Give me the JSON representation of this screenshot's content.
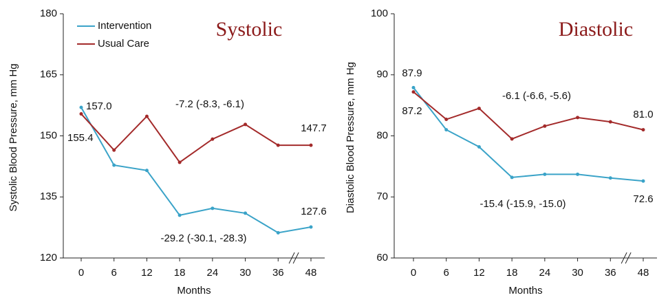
{
  "chart_data": [
    {
      "type": "line",
      "title": "Systolic",
      "y_label": "Systolic Blood Pressure, mm Hg",
      "x_label": "Months",
      "categories": [
        0,
        6,
        12,
        18,
        24,
        30,
        36,
        48
      ],
      "ylim": [
        120,
        180
      ],
      "yticks": [
        120,
        135,
        150,
        165,
        180
      ],
      "legend": "upper left",
      "series": [
        {
          "name": "Intervention",
          "color": "#3aa3c8",
          "values": [
            157.0,
            142.8,
            141.5,
            130.5,
            132.2,
            131.0,
            126.2,
            127.6
          ]
        },
        {
          "name": "Usual Care",
          "color": "#a32a2a",
          "values": [
            155.4,
            146.5,
            154.8,
            143.5,
            149.2,
            152.8,
            147.7,
            147.7
          ]
        }
      ],
      "annotations": [
        "157.0",
        "155.4",
        "-7.2 (-8.3, -6.1)",
        "147.7",
        "127.6",
        "-29.2 (-30.1, -28.3)"
      ]
    },
    {
      "type": "line",
      "title": "Diastolic",
      "y_label": "Diastolic Blood Pressure, mm Hg",
      "x_label": "Months",
      "categories": [
        0,
        6,
        12,
        18,
        24,
        30,
        36,
        48
      ],
      "ylim": [
        60,
        100
      ],
      "yticks": [
        60,
        70,
        80,
        90,
        100
      ],
      "series": [
        {
          "color": "#3aa3c8",
          "values": [
            87.9,
            81.0,
            78.2,
            73.2,
            73.7,
            73.7,
            73.1,
            72.6
          ]
        },
        {
          "color": "#a32a2a",
          "values": [
            87.2,
            82.7,
            84.5,
            79.5,
            81.6,
            83.0,
            82.3,
            81.0
          ]
        }
      ],
      "annotations": [
        "87.9",
        "87.2",
        "-6.1 (-6.6, -5.6)",
        "81.0",
        "72.6",
        "-15.4 (-15.9, -15.0)"
      ]
    }
  ]
}
